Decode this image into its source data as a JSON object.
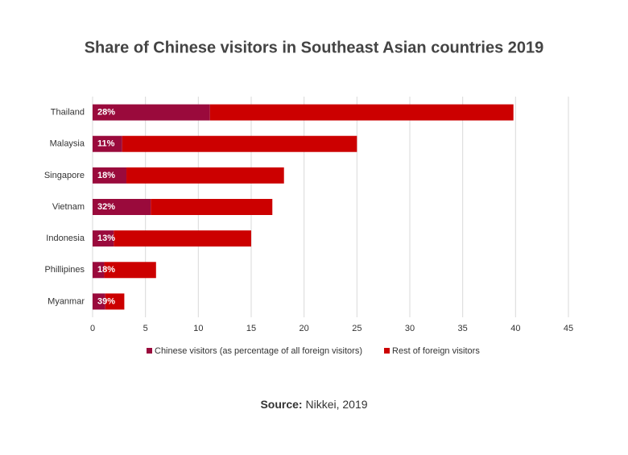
{
  "chart_data": {
    "type": "stacked-barh",
    "title": "Share of Chinese visitors in Southeast Asian countries 2019",
    "categories": [
      "Thailand",
      "Malaysia",
      "Singapore",
      "Vietnam",
      "Indonesia",
      "Phillipines",
      "Myanmar"
    ],
    "series": [
      {
        "name": "Chinese visitors (as percentage of all foreign visitors)",
        "color": "#9a0a3c",
        "values": [
          11.1,
          2.8,
          3.2,
          5.5,
          2.0,
          1.1,
          1.2
        ],
        "share_labels": [
          "28%",
          "11%",
          "18%",
          "32%",
          "13%",
          "18%",
          "39%"
        ]
      },
      {
        "name": "Rest of foreign visitors",
        "color": "#cc0000",
        "values": [
          28.7,
          22.2,
          14.9,
          11.5,
          13.0,
          4.9,
          1.8
        ]
      }
    ],
    "xlim": [
      0,
      45
    ],
    "xticks": [
      0,
      5,
      10,
      15,
      20,
      25,
      30,
      35,
      40,
      45
    ],
    "grid": true,
    "source_label": "Source:",
    "source": "Nikkei, 2019"
  }
}
